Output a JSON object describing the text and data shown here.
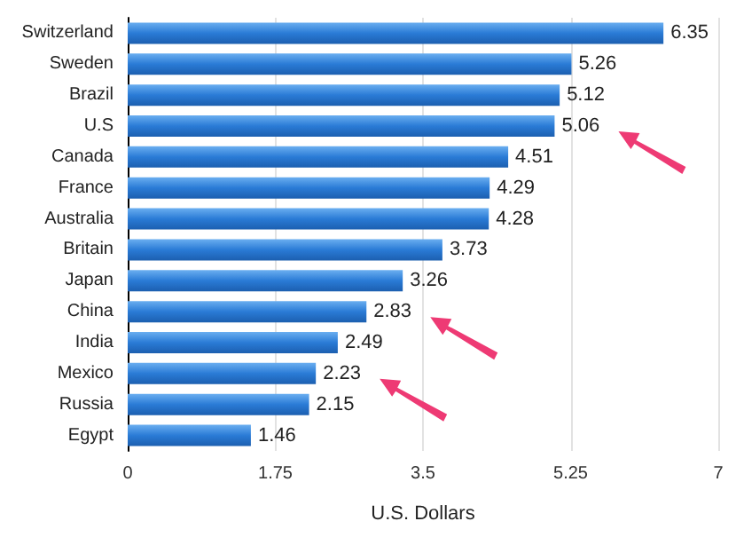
{
  "chart_data": {
    "type": "bar",
    "orientation": "horizontal",
    "xlabel": "U.S. Dollars",
    "categories": [
      "Switzerland",
      "Sweden",
      "Brazil",
      "U.S",
      "Canada",
      "France",
      "Australia",
      "Britain",
      "Japan",
      "China",
      "India",
      "Mexico",
      "Russia",
      "Egypt"
    ],
    "values": [
      6.35,
      5.26,
      5.12,
      5.06,
      4.51,
      4.29,
      4.28,
      3.73,
      3.26,
      2.83,
      2.49,
      2.23,
      2.15,
      1.46
    ],
    "color": "#2a7bd6",
    "xlim": [
      0,
      7
    ],
    "xticks": [
      0,
      1.75,
      3.5,
      5.25,
      7
    ],
    "grid": "x",
    "data_labels": true
  }
}
